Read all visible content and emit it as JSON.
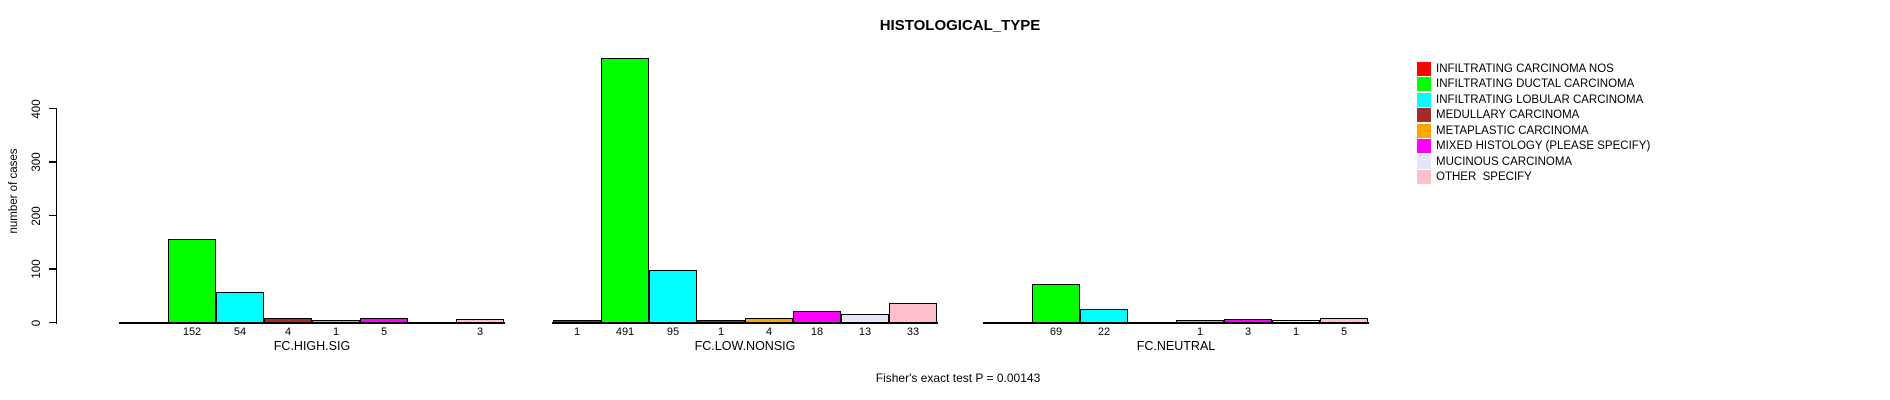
{
  "title": "HISTOLOGICAL_TYPE",
  "ylabel": "number of cases",
  "footer": "Fisher's exact test P = 0.00143",
  "chart_data": {
    "type": "bar",
    "title": "HISTOLOGICAL_TYPE",
    "xlabel": "",
    "ylabel": "number of cases",
    "ylim": [
      0,
      400
    ],
    "yticks": [
      0,
      100,
      200,
      300,
      400
    ],
    "grid": false,
    "legend_position": "top-right",
    "categories": [
      "FC.HIGH.SIG",
      "FC.LOW.NONSIG",
      "FC.NEUTRAL"
    ],
    "series": [
      {
        "name": "INFILTRATING CARCINOMA NOS",
        "color": "#FF0000",
        "values": [
          0,
          1,
          0
        ]
      },
      {
        "name": "INFILTRATING DUCTAL CARCINOMA",
        "color": "#00FF00",
        "values": [
          152,
          491,
          69
        ]
      },
      {
        "name": "INFILTRATING LOBULAR CARCINOMA",
        "color": "#00FFFF",
        "values": [
          54,
          95,
          22
        ]
      },
      {
        "name": "MEDULLARY CARCINOMA",
        "color": "#A52A2A",
        "values": [
          4,
          1,
          0
        ]
      },
      {
        "name": "METAPLASTIC CARCINOMA",
        "color": "#FFA500",
        "values": [
          1,
          4,
          1
        ]
      },
      {
        "name": "MIXED HISTOLOGY (PLEASE SPECIFY)",
        "color": "#FF00FF",
        "values": [
          5,
          18,
          3
        ]
      },
      {
        "name": "MUCINOUS CARCINOMA",
        "color": "#E6E6FA",
        "values": [
          0,
          13,
          1
        ]
      },
      {
        "name": "OTHER  SPECIFY",
        "color": "#FFC0CB",
        "values": [
          3,
          33,
          5
        ]
      }
    ],
    "value_labels_shown_for_nonzero_only": true,
    "annotation": "Fisher's exact test P = 0.00143"
  }
}
